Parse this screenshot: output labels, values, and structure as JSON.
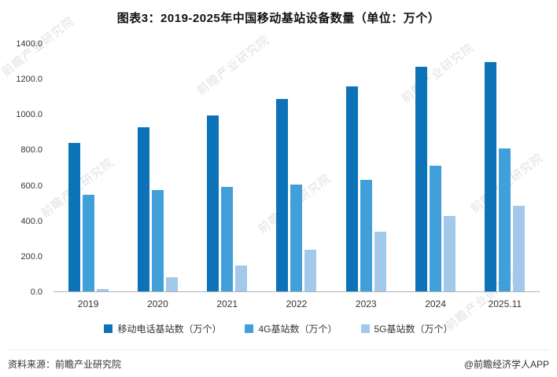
{
  "title": "图表3：2019-2025年中国移动基站设备数量（单位：万个）",
  "watermark": {
    "text": "前瞻产业研究院"
  },
  "footer": {
    "source": "资料来源：前瞻产业研究院",
    "credit": "@前瞻经济学人APP"
  },
  "chart_data": {
    "type": "bar",
    "title": "图表3：2019-2025年中国移动基站设备数量（单位：万个）",
    "categories": [
      "2019",
      "2020",
      "2021",
      "2022",
      "2023",
      "2024",
      "2025.11"
    ],
    "series": [
      {
        "name": "移动电话基站数（万个）",
        "color": "#0d73b9",
        "values": [
          840,
          930,
          995,
          1090,
          1160,
          1270,
          1300
        ]
      },
      {
        "name": "4G基站数（万个）",
        "color": "#41a0d9",
        "values": [
          545,
          575,
          590,
          605,
          630,
          710,
          810
        ]
      },
      {
        "name": "5G基站数（万个）",
        "color": "#a2c8ea",
        "values": [
          15,
          80,
          145,
          235,
          340,
          425,
          485
        ]
      }
    ],
    "xlabel": "",
    "ylabel": "",
    "ylim": [
      0,
      1400
    ],
    "ytick_labels": [
      "0.0",
      "200.0",
      "400.0",
      "600.0",
      "800.0",
      "1000.0",
      "1200.0",
      "1400.0"
    ],
    "grid": false,
    "legend_position": "bottom"
  }
}
